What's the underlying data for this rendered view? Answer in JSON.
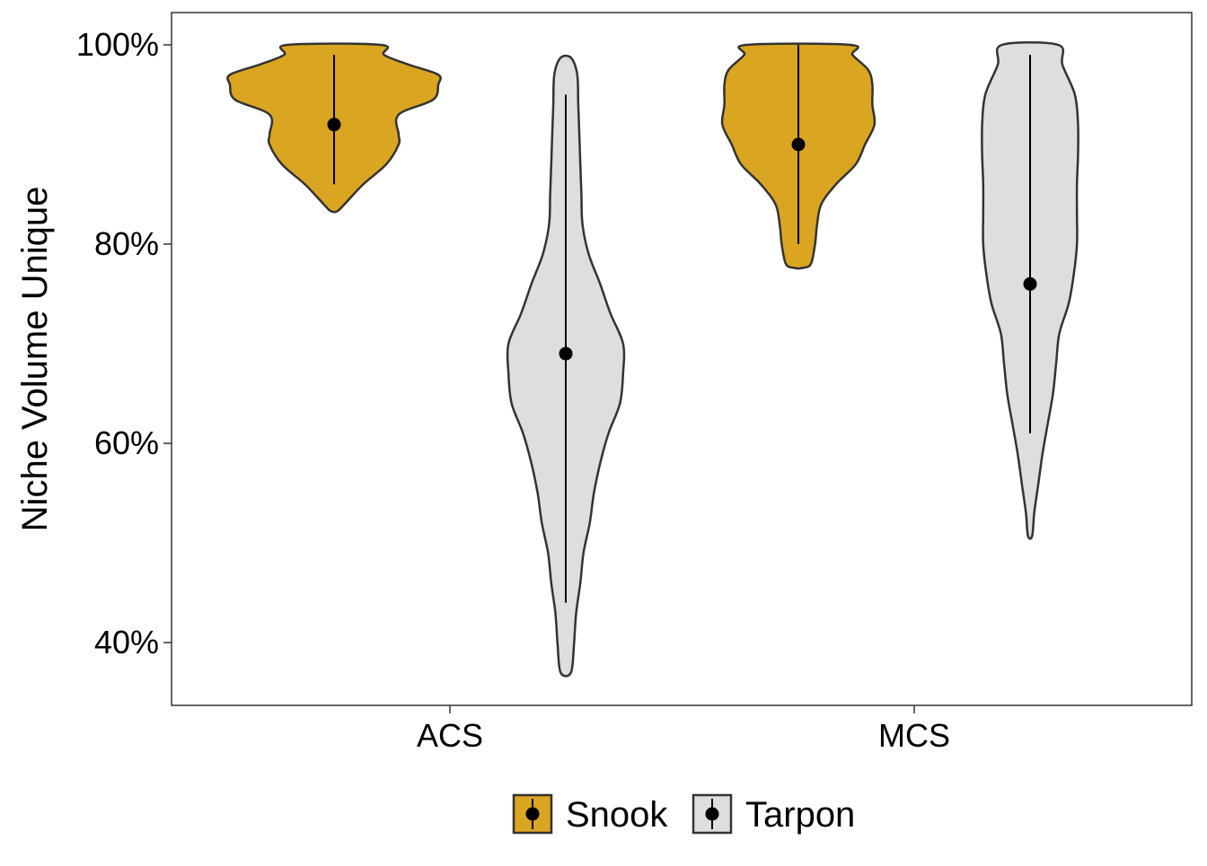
{
  "chart_data": {
    "type": "violin",
    "xlabel": "",
    "ylabel": "Niche Volume Unique",
    "categories": [
      "ACS",
      "MCS"
    ],
    "ylim": [
      0.34,
      1.03
    ],
    "yticks": [
      {
        "value": 0.4,
        "label": "40%"
      },
      {
        "value": 0.6,
        "label": "60%"
      },
      {
        "value": 0.8,
        "label": "80%"
      },
      {
        "value": 1.0,
        "label": "100%"
      }
    ],
    "grid": false,
    "legend_position": "bottom",
    "series": [
      {
        "name": "Snook",
        "color": "#DAA520",
        "groups": [
          {
            "category": "ACS",
            "mean": 0.92,
            "range": [
              0.86,
              0.99
            ],
            "violin_min": 0.833,
            "violin_max": 1.0,
            "density": [
              [
                0.833,
                0.03
              ],
              [
                0.84,
                0.1
              ],
              [
                0.86,
                0.28
              ],
              [
                0.88,
                0.5
              ],
              [
                0.9,
                0.62
              ],
              [
                0.91,
                0.62
              ],
              [
                0.93,
                0.62
              ],
              [
                0.945,
                0.95
              ],
              [
                0.96,
                1.0
              ],
              [
                0.97,
                1.0
              ],
              [
                0.98,
                0.72
              ],
              [
                0.99,
                0.48
              ],
              [
                1.0,
                0.45
              ]
            ]
          },
          {
            "category": "MCS",
            "mean": 0.9,
            "range": [
              0.8,
              1.0
            ],
            "violin_min": 0.776,
            "violin_max": 1.0,
            "density": [
              [
                0.776,
                0.04
              ],
              [
                0.78,
                0.12
              ],
              [
                0.8,
                0.16
              ],
              [
                0.82,
                0.18
              ],
              [
                0.84,
                0.22
              ],
              [
                0.86,
                0.36
              ],
              [
                0.88,
                0.55
              ],
              [
                0.9,
                0.64
              ],
              [
                0.92,
                0.73
              ],
              [
                0.94,
                0.71
              ],
              [
                0.96,
                0.71
              ],
              [
                0.975,
                0.67
              ],
              [
                0.99,
                0.52
              ],
              [
                1.0,
                0.5
              ]
            ]
          }
        ]
      },
      {
        "name": "Tarpon",
        "color": "#DEDEDE",
        "groups": [
          {
            "category": "ACS",
            "mean": 0.69,
            "range": [
              0.44,
              0.95
            ],
            "violin_min": 0.37,
            "violin_max": 0.987,
            "density": [
              [
                0.37,
                0.05
              ],
              [
                0.4,
                0.08
              ],
              [
                0.43,
                0.1
              ],
              [
                0.46,
                0.14
              ],
              [
                0.49,
                0.17
              ],
              [
                0.52,
                0.23
              ],
              [
                0.55,
                0.27
              ],
              [
                0.58,
                0.33
              ],
              [
                0.61,
                0.41
              ],
              [
                0.64,
                0.52
              ],
              [
                0.67,
                0.55
              ],
              [
                0.7,
                0.55
              ],
              [
                0.73,
                0.43
              ],
              [
                0.76,
                0.33
              ],
              [
                0.79,
                0.22
              ],
              [
                0.82,
                0.16
              ],
              [
                0.85,
                0.15
              ],
              [
                0.88,
                0.14
              ],
              [
                0.91,
                0.13
              ],
              [
                0.94,
                0.12
              ],
              [
                0.97,
                0.11
              ],
              [
                0.987,
                0.05
              ]
            ]
          },
          {
            "category": "MCS",
            "mean": 0.76,
            "range": [
              0.61,
              0.99
            ],
            "violin_min": 0.507,
            "violin_max": 1.0,
            "density": [
              [
                0.507,
                0.02
              ],
              [
                0.53,
                0.04
              ],
              [
                0.56,
                0.08
              ],
              [
                0.59,
                0.12
              ],
              [
                0.62,
                0.17
              ],
              [
                0.65,
                0.22
              ],
              [
                0.68,
                0.25
              ],
              [
                0.71,
                0.28
              ],
              [
                0.74,
                0.37
              ],
              [
                0.77,
                0.42
              ],
              [
                0.8,
                0.45
              ],
              [
                0.83,
                0.45
              ],
              [
                0.86,
                0.45
              ],
              [
                0.89,
                0.46
              ],
              [
                0.92,
                0.46
              ],
              [
                0.95,
                0.43
              ],
              [
                0.98,
                0.31
              ],
              [
                1.0,
                0.27
              ]
            ]
          }
        ]
      }
    ]
  }
}
